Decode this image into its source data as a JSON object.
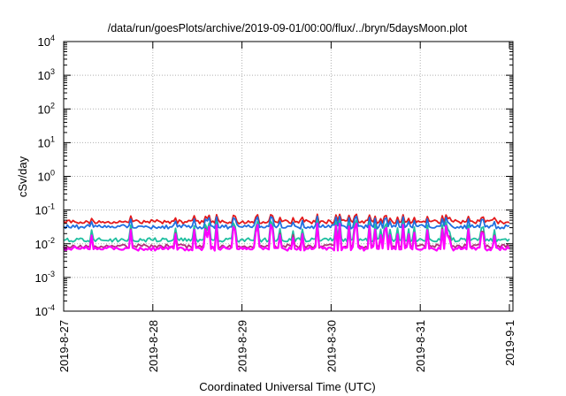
{
  "chart_data": {
    "type": "line",
    "title": "/data/run/goesPlots/archive/2019-09-01/00:00/flux/../bryn/5daysMoon.plot",
    "xlabel": "Coordinated Universal Time (UTC)",
    "ylabel": "cSv/day",
    "yscale": "log",
    "ylim": [
      0.0001,
      10000
    ],
    "xlim": [
      "2019-8-27",
      "2019-9-1"
    ],
    "grid": true,
    "x_ticks": [
      "2019-8-27",
      "2019-8-28",
      "2019-8-29",
      "2019-8-30",
      "2019-8-31",
      "2019-9-1"
    ],
    "y_ticks": [
      {
        "base": "10",
        "exp": "-4"
      },
      {
        "base": "10",
        "exp": "-3"
      },
      {
        "base": "10",
        "exp": "-2"
      },
      {
        "base": "10",
        "exp": "-1"
      },
      {
        "base": "10",
        "exp": "0"
      },
      {
        "base": "10",
        "exp": "1"
      },
      {
        "base": "10",
        "exp": "2"
      },
      {
        "base": "10",
        "exp": "3"
      },
      {
        "base": "10",
        "exp": "4"
      }
    ],
    "series": [
      {
        "color": "#e41a1c",
        "baseline": 0.045,
        "spike": 0.075
      },
      {
        "color": "#1f6fe0",
        "baseline": 0.032,
        "spike": 0.065
      },
      {
        "color": "#1fbfa0",
        "baseline": 0.013,
        "spike": 0.05
      },
      {
        "color": "#b0307a",
        "baseline": 0.0085,
        "spike": 0.04
      },
      {
        "color": "#ff00ff",
        "baseline": 0.0072,
        "spike": 0.04
      }
    ]
  }
}
